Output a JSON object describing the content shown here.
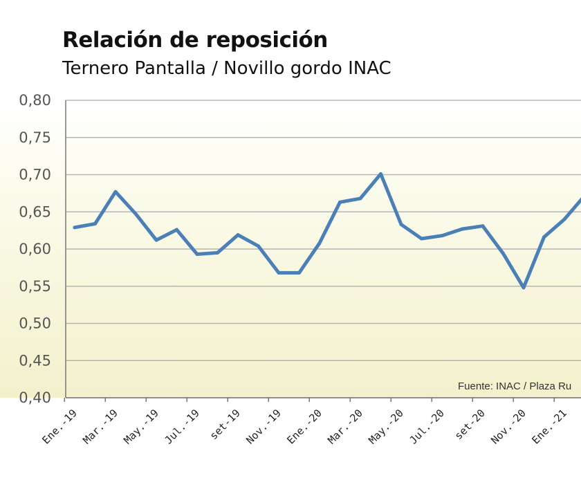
{
  "chart_data": {
    "type": "line",
    "title": "Relación de reposición",
    "subtitle": "Ternero Pantalla / Novillo gordo INAC",
    "source": "Fuente: INAC / Plaza Ru",
    "xlabel": "",
    "ylabel": "",
    "ylim": [
      0.4,
      0.8
    ],
    "yticks": [
      "0,40",
      "0,45",
      "0,50",
      "0,55",
      "0,60",
      "0,65",
      "0,70",
      "0,75",
      "0,80"
    ],
    "xtick_labels": [
      "Ene.-19",
      "Mar.-19",
      "May.-19",
      "Jul.-19",
      "set-19",
      "Nov.-19",
      "Ene.-20",
      "Mar.-20",
      "May.-20",
      "Jul.-20",
      "set-20",
      "Nov.-20",
      "Ene.-21"
    ],
    "grid": true,
    "series": [
      {
        "color": "#4a7fb8",
        "x": [
          "Ene.-19",
          "Feb.-19",
          "Mar.-19",
          "Abr.-19",
          "May.-19",
          "Jun.-19",
          "Jul.-19",
          "Ago.-19",
          "set-19",
          "Oct.-19",
          "Nov.-19",
          "Dic.-19",
          "Ene.-20",
          "Feb.-20",
          "Mar.-20",
          "Abr.-20",
          "May.-20",
          "Jun.-20",
          "Jul.-20",
          "Ago.-20",
          "set-20",
          "Oct.-20",
          "Nov.-20",
          "Dic.-20",
          "Ene.-21",
          "Feb.-21"
        ],
        "values": [
          0.629,
          0.634,
          0.677,
          0.647,
          0.612,
          0.626,
          0.593,
          0.595,
          0.619,
          0.604,
          0.568,
          0.568,
          0.608,
          0.663,
          0.668,
          0.701,
          0.633,
          0.614,
          0.618,
          0.627,
          0.631,
          0.594,
          0.548,
          0.616,
          0.64,
          0.672
        ]
      }
    ]
  },
  "colors": {
    "line": "#4a7fb8",
    "grid": "#b5b5b5",
    "axis": "#777777",
    "bg_top": "#ffffff",
    "bg_bottom": "#f2f1cc"
  }
}
